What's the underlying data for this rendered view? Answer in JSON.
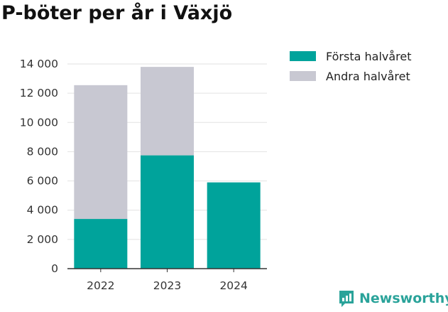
{
  "page_title": "P-böter per år i Växjö",
  "brand": {
    "name": "Newsworthy",
    "icon": "newsworthy-logo-icon"
  },
  "colors": {
    "first_half": "#00a39b",
    "second_half": "#c8c8d2",
    "grid": "#e2e2e2",
    "axis": "#333333"
  },
  "chart_data": {
    "type": "bar",
    "stacked": true,
    "categories": [
      "2022",
      "2023",
      "2024"
    ],
    "series": [
      {
        "name": "Första halvåret",
        "values": [
          3400,
          7750,
          5900
        ]
      },
      {
        "name": "Andra halvåret",
        "values": [
          9150,
          6050,
          0
        ]
      }
    ],
    "title": "P-böter per år i Växjö",
    "xlabel": "",
    "ylabel": "",
    "ylim": [
      0,
      14000
    ],
    "y_ticks": [
      "0",
      "2 000",
      "4 000",
      "6 000",
      "8 000",
      "10 000",
      "12 000",
      "14 000"
    ],
    "grid": true,
    "legend_position": "right"
  }
}
